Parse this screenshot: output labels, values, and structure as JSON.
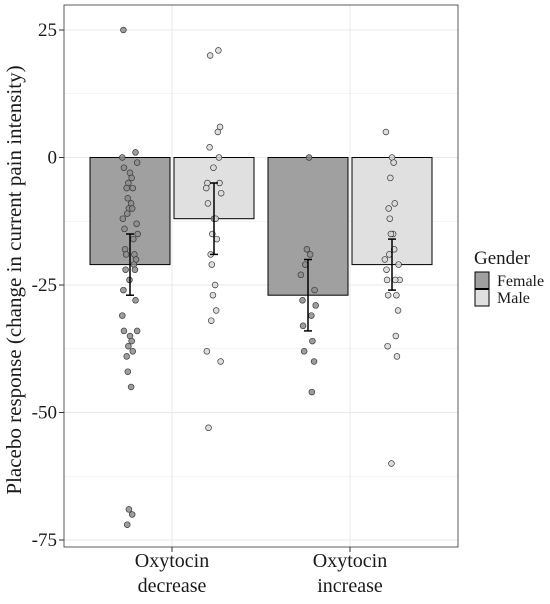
{
  "chart_data": {
    "type": "bar",
    "xlabel": "",
    "ylabel": "Placebo response (change in current pain intensity)",
    "ylim": [
      -76,
      27
    ],
    "yticks": [
      25,
      0,
      -25,
      -50,
      -75
    ],
    "ytick_labels": [
      "25",
      "0",
      "-25",
      "-50",
      "-75"
    ],
    "grid": true,
    "categories": [
      {
        "line1": "Oxytocin",
        "line2": "decrease"
      },
      {
        "line1": "Oxytocin",
        "line2": "increase"
      }
    ],
    "legend": {
      "title": "Gender",
      "position": "right",
      "entries": [
        {
          "label": "Female",
          "color": "#a0a0a0"
        },
        {
          "label": "Male",
          "color": "#e0e0e0"
        }
      ]
    },
    "series": [
      {
        "name": "Female",
        "color": "#a0a0a0",
        "point_color": "#8c8c8c",
        "values": [
          -21,
          -27
        ],
        "error": [
          [
            -27,
            -15
          ],
          [
            -34,
            -20
          ]
        ],
        "points": [
          [
            25,
            1,
            0,
            -1,
            -2,
            -3,
            -4,
            -5,
            -6,
            -6,
            -8,
            -9,
            -10,
            -10,
            -11,
            -12,
            -13,
            -14,
            -15,
            -16,
            -18,
            -19,
            -19,
            -20,
            -21,
            -22,
            -22,
            -24,
            -26,
            -28,
            -31,
            -34,
            -34,
            -35,
            -36,
            -37,
            -38,
            -39,
            -42,
            -45,
            -69,
            -70,
            -72
          ],
          [
            0,
            -18,
            -19,
            -21,
            -23,
            -26,
            -28,
            -29,
            -31,
            -33,
            -36,
            -38,
            -40,
            -46
          ]
        ]
      },
      {
        "name": "Male",
        "color": "#e0e0e0",
        "point_color": "#d8d8d8",
        "values": [
          -12,
          -21
        ],
        "error": [
          [
            -19,
            -5
          ],
          [
            -26,
            -16
          ]
        ],
        "points": [
          [
            21,
            20,
            6,
            5,
            2,
            0,
            -2,
            -5,
            -5,
            -6,
            -7,
            -9,
            -12,
            -12,
            -15,
            -16,
            -19,
            -21,
            -25,
            -27,
            -30,
            -32,
            -38,
            -40,
            -53
          ],
          [
            5,
            0,
            -1,
            -4,
            -9,
            -10,
            -12,
            -15,
            -15,
            -18,
            -19,
            -20,
            -21,
            -22,
            -24,
            -24,
            -24,
            -27,
            -27,
            -30,
            -35,
            -37,
            -39,
            -60
          ]
        ]
      }
    ]
  }
}
